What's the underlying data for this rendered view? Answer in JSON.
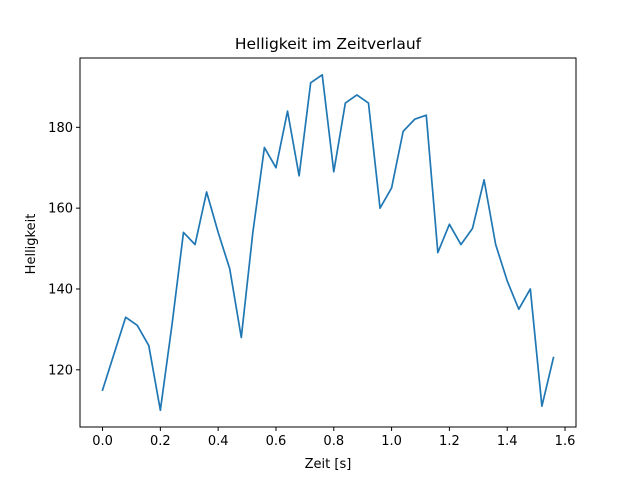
{
  "chart_data": {
    "type": "line",
    "title": "Helligkeit im Zeitverlauf",
    "xlabel": "Zeit [s]",
    "ylabel": "Helligkeit",
    "xlim": [
      -0.078,
      1.638
    ],
    "ylim": [
      105.85,
      197.15
    ],
    "xticks": [
      0.0,
      0.2,
      0.4,
      0.6,
      0.8,
      1.0,
      1.2,
      1.4,
      1.6
    ],
    "xtick_labels": [
      "0.0",
      "0.2",
      "0.4",
      "0.6",
      "0.8",
      "1.0",
      "1.2",
      "1.4",
      "1.6"
    ],
    "yticks": [
      120,
      140,
      160,
      180
    ],
    "ytick_labels": [
      "120",
      "140",
      "160",
      "180"
    ],
    "grid": false,
    "legend": "none",
    "series": [
      {
        "color": "#1f77b4",
        "x": [
          0.0,
          0.04,
          0.08,
          0.12,
          0.16,
          0.2,
          0.24,
          0.28,
          0.32,
          0.36,
          0.4,
          0.44,
          0.48,
          0.52,
          0.56,
          0.6,
          0.64,
          0.68,
          0.72,
          0.76,
          0.8,
          0.84,
          0.88,
          0.92,
          0.96,
          1.0,
          1.04,
          1.08,
          1.12,
          1.16,
          1.2,
          1.24,
          1.28,
          1.32,
          1.36,
          1.4,
          1.44,
          1.48,
          1.52,
          1.56
        ],
        "values": [
          115,
          124,
          133,
          131,
          126,
          110,
          131,
          154,
          151,
          164,
          154,
          145,
          128,
          154,
          175,
          170,
          184,
          168,
          191,
          193,
          169,
          186,
          188,
          186,
          160,
          165,
          179,
          182,
          183,
          149,
          156,
          151,
          155,
          167,
          151,
          142,
          135,
          140,
          111,
          123
        ]
      }
    ]
  }
}
